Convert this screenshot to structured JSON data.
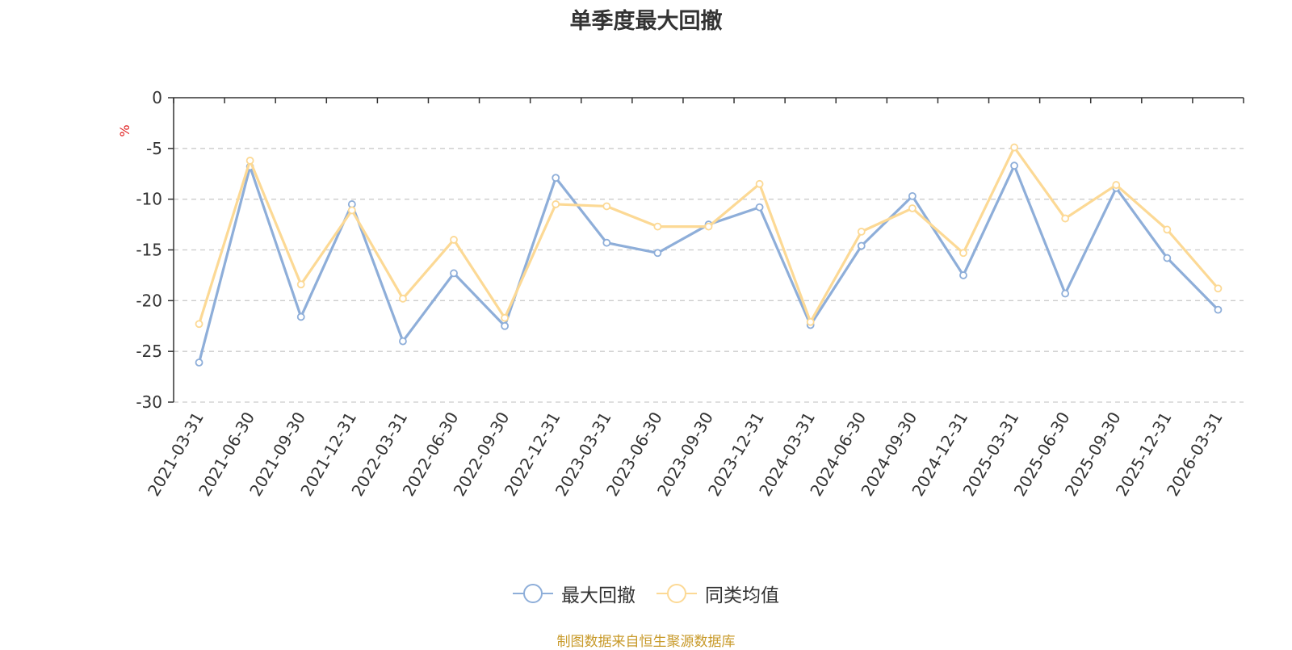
{
  "colors": {
    "series_1": "#8eaed9",
    "series_2": "#fcd995",
    "axis": "#333333",
    "grid": "#cccccc",
    "unit": "#e02020",
    "source_note": "#c89a2a"
  },
  "source_note": "制图数据来自恒生聚源数据库",
  "chart_data": {
    "type": "line",
    "title": "单季度最大回撤",
    "ylabel": "%",
    "xlabel": "",
    "ylim": [
      -30,
      0
    ],
    "yticks": [
      0,
      -5,
      -10,
      -15,
      -20,
      -25,
      -30
    ],
    "grid": true,
    "legend_position": "bottom-center",
    "x": [
      "2021-03-31",
      "2021-06-30",
      "2021-09-30",
      "2021-12-31",
      "2022-03-31",
      "2022-06-30",
      "2022-09-30",
      "2022-12-31",
      "2023-03-31",
      "2023-06-30",
      "2023-09-30",
      "2023-12-31",
      "2024-03-31",
      "2024-06-30",
      "2024-09-30",
      "2024-12-31",
      "2025-03-31",
      "2025-06-30",
      "2025-09-30",
      "2025-12-31",
      "2026-03-31"
    ],
    "series": [
      {
        "name": "最大回撤",
        "values": [
          -26.1,
          -6.8,
          -21.6,
          -10.5,
          -24.0,
          -17.3,
          -22.5,
          -7.9,
          -14.3,
          -15.3,
          -12.5,
          -10.8,
          -22.4,
          -14.6,
          -9.7,
          -17.5,
          -6.7,
          -19.3,
          -8.9,
          -15.8,
          -20.9
        ]
      },
      {
        "name": "同类均值",
        "values": [
          -22.3,
          -6.2,
          -18.4,
          -11.1,
          -19.8,
          -14.0,
          -21.7,
          -10.5,
          -10.7,
          -12.7,
          -12.7,
          -8.5,
          -22.1,
          -13.2,
          -10.9,
          -15.3,
          -4.9,
          -11.9,
          -8.6,
          -13.0,
          -18.8
        ]
      }
    ]
  }
}
